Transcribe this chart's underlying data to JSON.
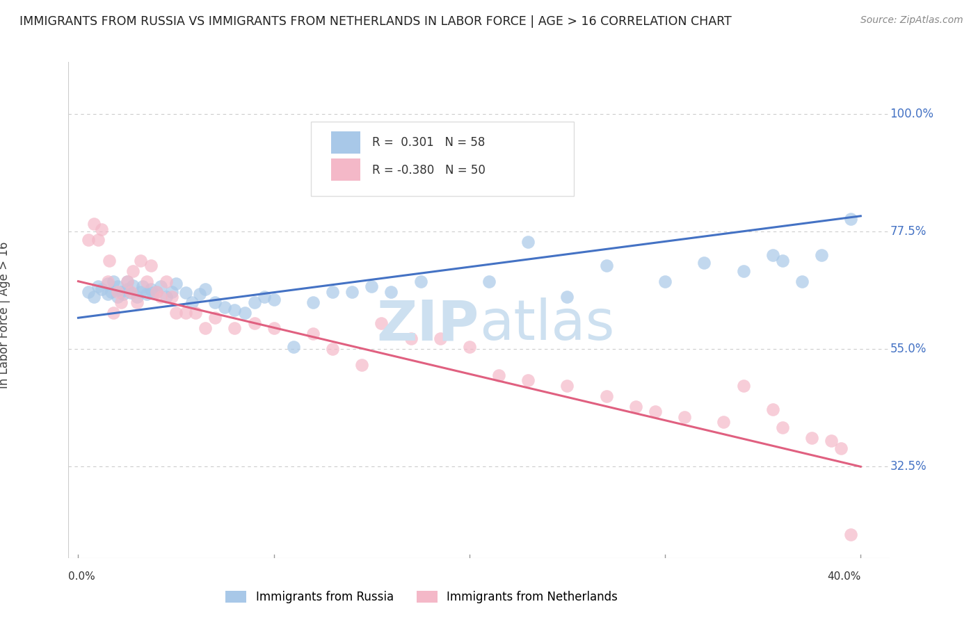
{
  "title": "IMMIGRANTS FROM RUSSIA VS IMMIGRANTS FROM NETHERLANDS IN LABOR FORCE | AGE > 16 CORRELATION CHART",
  "source": "Source: ZipAtlas.com",
  "ylabel": "In Labor Force | Age > 16",
  "right_yticks": [
    1.0,
    0.775,
    0.55,
    0.325
  ],
  "right_yticklabels": [
    "100.0%",
    "77.5%",
    "55.0%",
    "32.5%"
  ],
  "blue_label": "Immigrants from Russia",
  "pink_label": "Immigrants from Netherlands",
  "blue_color": "#a8c8e8",
  "pink_color": "#f4b8c8",
  "blue_line_color": "#4472c4",
  "pink_line_color": "#e06080",
  "blue_R": 0.301,
  "blue_N": 58,
  "pink_R": -0.38,
  "pink_N": 50,
  "xlim": [
    0.0,
    0.4
  ],
  "ylim": [
    0.15,
    1.1
  ],
  "blue_scatter_x": [
    0.005,
    0.008,
    0.01,
    0.012,
    0.015,
    0.015,
    0.017,
    0.018,
    0.02,
    0.02,
    0.022,
    0.023,
    0.025,
    0.025,
    0.027,
    0.028,
    0.03,
    0.032,
    0.033,
    0.035,
    0.037,
    0.038,
    0.04,
    0.042,
    0.045,
    0.048,
    0.05,
    0.055,
    0.058,
    0.062,
    0.065,
    0.07,
    0.075,
    0.08,
    0.085,
    0.09,
    0.095,
    0.1,
    0.11,
    0.12,
    0.13,
    0.14,
    0.15,
    0.16,
    0.175,
    0.19,
    0.21,
    0.23,
    0.25,
    0.27,
    0.3,
    0.32,
    0.34,
    0.355,
    0.36,
    0.37,
    0.38,
    0.395
  ],
  "blue_scatter_y": [
    0.66,
    0.65,
    0.67,
    0.665,
    0.655,
    0.675,
    0.66,
    0.68,
    0.65,
    0.67,
    0.66,
    0.655,
    0.665,
    0.68,
    0.658,
    0.672,
    0.65,
    0.66,
    0.67,
    0.655,
    0.665,
    0.658,
    0.66,
    0.67,
    0.65,
    0.66,
    0.675,
    0.658,
    0.64,
    0.655,
    0.665,
    0.64,
    0.63,
    0.625,
    0.62,
    0.64,
    0.65,
    0.645,
    0.555,
    0.64,
    0.66,
    0.66,
    0.67,
    0.66,
    0.68,
    0.87,
    0.68,
    0.755,
    0.65,
    0.71,
    0.68,
    0.715,
    0.7,
    0.73,
    0.72,
    0.68,
    0.73,
    0.8
  ],
  "pink_scatter_x": [
    0.005,
    0.008,
    0.01,
    0.012,
    0.015,
    0.016,
    0.018,
    0.02,
    0.022,
    0.025,
    0.027,
    0.028,
    0.03,
    0.032,
    0.035,
    0.037,
    0.04,
    0.042,
    0.045,
    0.048,
    0.05,
    0.055,
    0.06,
    0.065,
    0.07,
    0.08,
    0.09,
    0.1,
    0.12,
    0.13,
    0.145,
    0.155,
    0.17,
    0.185,
    0.2,
    0.215,
    0.23,
    0.25,
    0.27,
    0.285,
    0.295,
    0.31,
    0.33,
    0.34,
    0.355,
    0.36,
    0.375,
    0.385,
    0.39,
    0.395
  ],
  "pink_scatter_y": [
    0.76,
    0.79,
    0.76,
    0.78,
    0.68,
    0.72,
    0.62,
    0.66,
    0.64,
    0.68,
    0.66,
    0.7,
    0.64,
    0.72,
    0.68,
    0.71,
    0.66,
    0.65,
    0.68,
    0.65,
    0.62,
    0.62,
    0.62,
    0.59,
    0.61,
    0.59,
    0.6,
    0.59,
    0.58,
    0.55,
    0.52,
    0.6,
    0.57,
    0.57,
    0.555,
    0.5,
    0.49,
    0.48,
    0.46,
    0.44,
    0.43,
    0.42,
    0.41,
    0.48,
    0.435,
    0.4,
    0.38,
    0.375,
    0.36,
    0.195
  ],
  "blue_line_x": [
    0.0,
    0.4
  ],
  "blue_line_y": [
    0.61,
    0.805
  ],
  "pink_line_x": [
    0.0,
    0.4
  ],
  "pink_line_y": [
    0.68,
    0.325
  ]
}
